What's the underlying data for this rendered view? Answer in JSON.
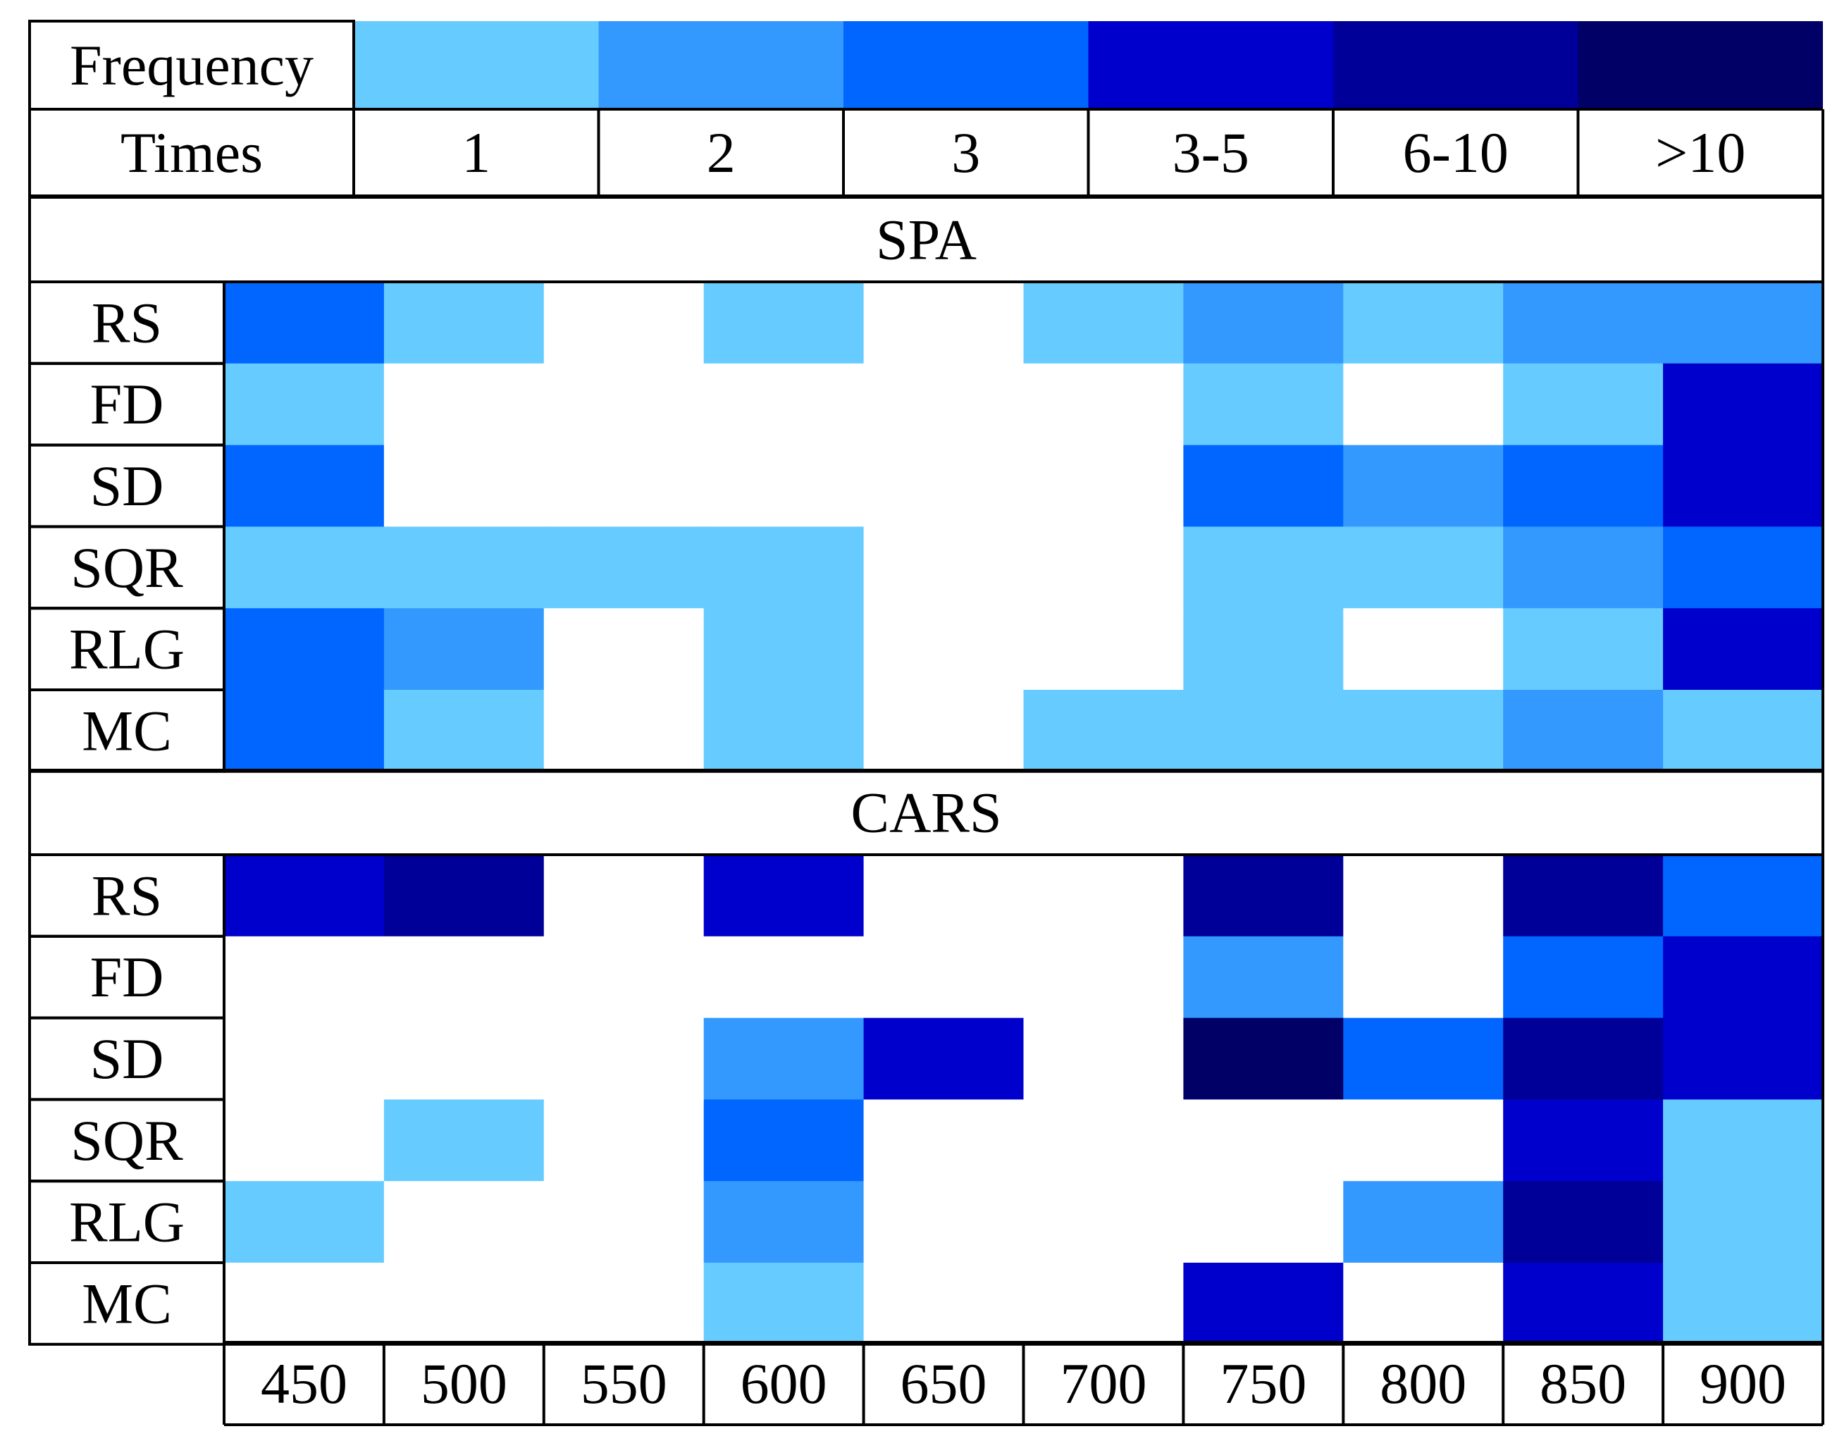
{
  "chart_data": {
    "type": "heatmap",
    "legend": {
      "header_label": "Frequency",
      "times_label": "Times",
      "bins": [
        "1",
        "2",
        "3",
        "3-5",
        "6-10",
        ">10"
      ],
      "colors": [
        "#66CCFF",
        "#3399FF",
        "#0066FF",
        "#0000CC",
        "#000099",
        "#000066"
      ]
    },
    "empty_color": "#FFFFFF",
    "columns": [
      "450",
      "500",
      "550",
      "600",
      "650",
      "700",
      "750",
      "800",
      "850",
      "900"
    ],
    "panels": [
      {
        "title": "SPA",
        "rows": [
          {
            "label": "RS",
            "levels": [
              3,
              1,
              0,
              1,
              0,
              1,
              2,
              1,
              2,
              2
            ]
          },
          {
            "label": "FD",
            "levels": [
              1,
              0,
              0,
              0,
              0,
              0,
              1,
              0,
              1,
              4
            ]
          },
          {
            "label": "SD",
            "levels": [
              3,
              0,
              0,
              0,
              0,
              0,
              3,
              2,
              3,
              4
            ]
          },
          {
            "label": "SQR",
            "levels": [
              1,
              1,
              1,
              1,
              0,
              0,
              1,
              1,
              2,
              3
            ]
          },
          {
            "label": "RLG",
            "levels": [
              3,
              2,
              0,
              1,
              0,
              0,
              1,
              0,
              1,
              4
            ]
          },
          {
            "label": "MC",
            "levels": [
              3,
              1,
              0,
              1,
              0,
              1,
              1,
              1,
              2,
              1
            ]
          }
        ]
      },
      {
        "title": "CARS",
        "rows": [
          {
            "label": "RS",
            "levels": [
              4,
              5,
              0,
              4,
              0,
              0,
              5,
              0,
              5,
              3
            ]
          },
          {
            "label": "FD",
            "levels": [
              0,
              0,
              0,
              0,
              0,
              0,
              2,
              0,
              3,
              4
            ]
          },
          {
            "label": "SD",
            "levels": [
              0,
              0,
              0,
              2,
              4,
              0,
              6,
              3,
              5,
              4
            ]
          },
          {
            "label": "SQR",
            "levels": [
              0,
              1,
              0,
              3,
              0,
              0,
              0,
              0,
              4,
              1
            ]
          },
          {
            "label": "RLG",
            "levels": [
              1,
              0,
              0,
              2,
              0,
              0,
              0,
              2,
              5,
              1
            ]
          },
          {
            "label": "MC",
            "levels": [
              0,
              0,
              0,
              1,
              0,
              0,
              4,
              0,
              4,
              1
            ]
          }
        ]
      }
    ]
  }
}
